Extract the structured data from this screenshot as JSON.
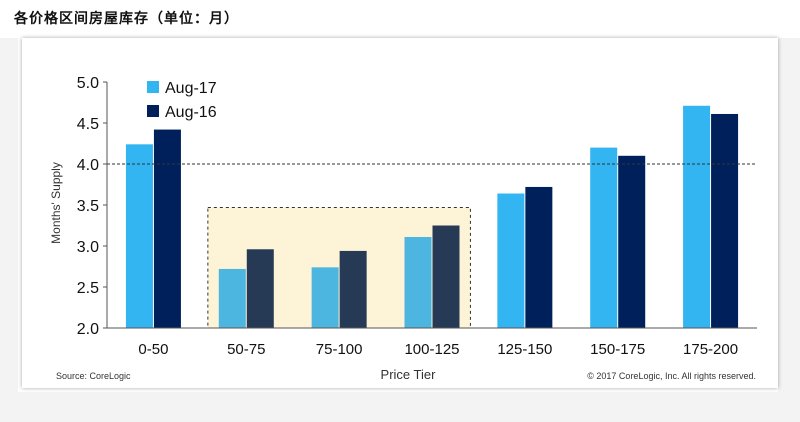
{
  "page": {
    "title": "各价格区间房屋库存（单位：月）"
  },
  "chart_data": {
    "type": "bar",
    "categories": [
      "0-50",
      "50-75",
      "75-100",
      "100-125",
      "125-150",
      "150-175",
      "175-200"
    ],
    "series": [
      {
        "name": "Aug-17",
        "values": [
          4.24,
          2.72,
          2.74,
          3.11,
          3.64,
          4.2,
          4.71
        ],
        "color": "#33b5f2",
        "highlight_color": "#4db6e0"
      },
      {
        "name": "Aug-16",
        "values": [
          4.42,
          2.96,
          2.94,
          3.25,
          3.72,
          4.1,
          4.61
        ],
        "color": "#00205c",
        "highlight_color": "#263a56"
      }
    ],
    "xlabel": "Price Tier",
    "ylabel": "Months' Supply",
    "ylim": [
      2.0,
      5.0
    ],
    "yticks": [
      "2.0",
      "2.5",
      "3.0",
      "3.5",
      "4.0",
      "4.5",
      "5.0"
    ],
    "reference_line": 4.0,
    "highlight_range": [
      "50-75",
      "100-125"
    ],
    "highlight_fill": "#fdf3d6",
    "legend_position": "top-left",
    "grid": false,
    "source": "Source: CoreLogic",
    "copyright": "© 2017 CoreLogic, Inc. All rights reserved."
  }
}
